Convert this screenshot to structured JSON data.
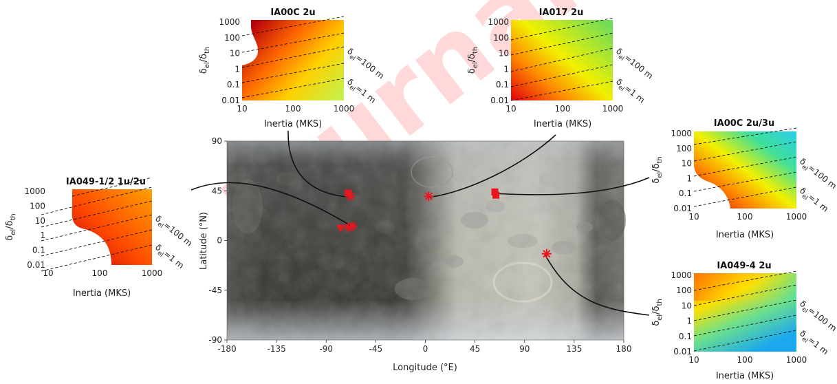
{
  "watermark": "Journal",
  "main_map": {
    "xlabel": "Longitude (°E)",
    "ylabel": "Latitude (°N)",
    "x_ticks": [
      "-180",
      "-135",
      "-90",
      "-45",
      "0",
      "45",
      "90",
      "135",
      "180"
    ],
    "y_ticks": [
      "-90",
      "-45",
      "0",
      "45",
      "90"
    ],
    "xlim": [
      -180,
      180
    ],
    "ylim": [
      -90,
      90
    ],
    "dark_region_color": "#3a3a36",
    "bright_region_color": "#c9c8c0",
    "marker_color": "#e8161d"
  },
  "chart_data": [
    {
      "type": "scatter",
      "name": "map_markers",
      "points": [
        {
          "lon": -70,
          "lat": 43,
          "marker": "square"
        },
        {
          "lon": -68,
          "lat": 40,
          "marker": "asterisk"
        },
        {
          "lon": -77,
          "lat": 11,
          "marker": "triangle"
        },
        {
          "lon": -70,
          "lat": 12,
          "marker": "asterisk"
        },
        {
          "lon": -66,
          "lat": 13,
          "marker": "asterisk"
        },
        {
          "lon": 3,
          "lat": 40,
          "marker": "asterisk"
        },
        {
          "lon": 63,
          "lat": 44,
          "marker": "square"
        },
        {
          "lon": 64,
          "lat": 41,
          "marker": "square"
        },
        {
          "lon": 110,
          "lat": -12,
          "marker": "asterisk"
        }
      ]
    },
    {
      "type": "heatmap",
      "title": "IA049-1/2 1u/2u",
      "xlabel": "Inertia (MKS)",
      "ylabel_main": "δ",
      "ylabel_sub": "el",
      "ylabel_main2": "/δ",
      "ylabel_sub2": "th",
      "x_ticks": [
        "10",
        "100",
        "1000"
      ],
      "y_ticks": [
        "1000",
        "100",
        "10",
        "1",
        "0.1",
        "0.01"
      ],
      "contour_labels": [
        "δ_el=100 m",
        "δ_el=1 m"
      ],
      "contour_label_main": "δ",
      "contour_label_sub": "el",
      "contour_label_values": [
        "=100 m",
        "=1 m"
      ],
      "colormap": [
        "#d7000f",
        "#ff5a00",
        "#ffa800"
      ],
      "masked_region": "left"
    },
    {
      "type": "heatmap",
      "title": "IA00C 2u",
      "xlabel": "Inertia (MKS)",
      "x_ticks": [
        "10",
        "100",
        "1000"
      ],
      "y_ticks": [
        "1000",
        "100",
        "10",
        "1",
        "0.1",
        "0.01"
      ],
      "contour_label_values": [
        "=100 m",
        "=1 m"
      ],
      "colormap": [
        "#c80010",
        "#ff7000",
        "#ffd000",
        "#c8f040"
      ]
    },
    {
      "type": "heatmap",
      "title": "IA017 2u",
      "xlabel": "Inertia (MKS)",
      "x_ticks": [
        "10",
        "100",
        "1000"
      ],
      "y_ticks": [
        "1000",
        "100",
        "10",
        "1",
        "0.1",
        "0.01"
      ],
      "contour_label_values": [
        "=100 m",
        "=1 m"
      ],
      "colormap": [
        "#e00010",
        "#ff8c00",
        "#f5f000",
        "#80e050"
      ]
    },
    {
      "type": "heatmap",
      "title": "IA00C 2u/3u",
      "xlabel": "Inertia (MKS)",
      "x_ticks": [
        "10",
        "100",
        "1000"
      ],
      "y_ticks": [
        "1000",
        "100",
        "10",
        "1",
        "0.1",
        "0.01"
      ],
      "contour_label_values": [
        "=100 m",
        "=1 m"
      ],
      "colormap": [
        "#e00010",
        "#ff9000",
        "#f5f000",
        "#40e0a0",
        "#30d0e0"
      ]
    },
    {
      "type": "heatmap",
      "title": "IA049-4 2u",
      "xlabel": "Inertia (MKS)",
      "x_ticks": [
        "10",
        "100",
        "1000"
      ],
      "y_ticks": [
        "1000",
        "100",
        "10",
        "1",
        "0.1",
        "0.01"
      ],
      "contour_label_values": [
        "=100 m",
        "=1 m"
      ],
      "colormap": [
        "#ff8000",
        "#ffe000",
        "#70e080",
        "#20b0f0"
      ]
    }
  ]
}
